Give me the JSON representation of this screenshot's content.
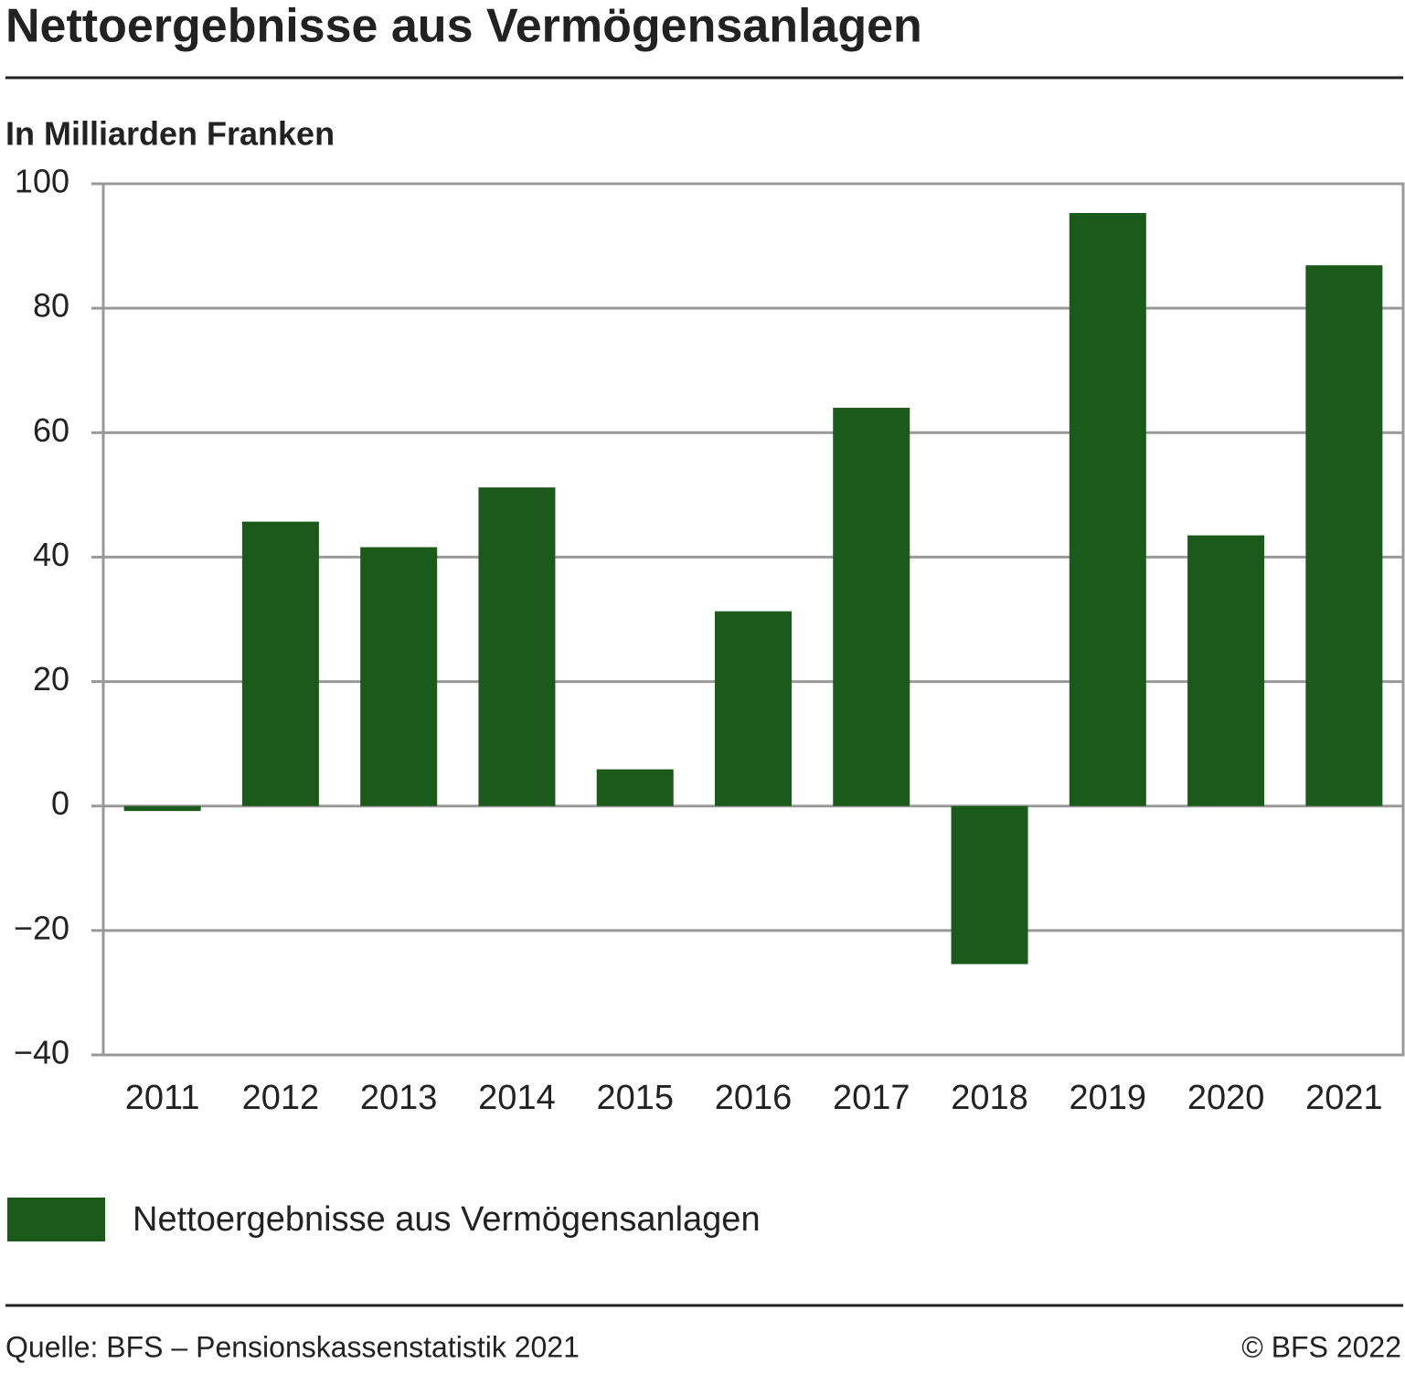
{
  "chart_data": {
    "type": "bar",
    "title": "Nettoergebnisse aus Vermögensanlagen",
    "subtitle": "In Milliarden Franken",
    "categories": [
      "2011",
      "2012",
      "2013",
      "2014",
      "2015",
      "2016",
      "2017",
      "2018",
      "2019",
      "2020",
      "2021"
    ],
    "series": [
      {
        "name": "Nettoergebnisse aus Vermögensanlagen",
        "color": "#1b5a1b",
        "values": [
          -0.8,
          45.7,
          41.6,
          51.2,
          5.9,
          31.3,
          64.0,
          -25.4,
          95.3,
          43.5,
          86.9
        ]
      }
    ],
    "ylim": [
      -40,
      100
    ],
    "yticks": [
      {
        "value": -40,
        "label": "−40"
      },
      {
        "value": -20,
        "label": "−20"
      },
      0,
      20,
      40,
      60,
      80,
      100
    ],
    "grid": true,
    "source": "Quelle: BFS – Pensionskassenstatistik 2021",
    "copyright": "© BFS 2022"
  }
}
